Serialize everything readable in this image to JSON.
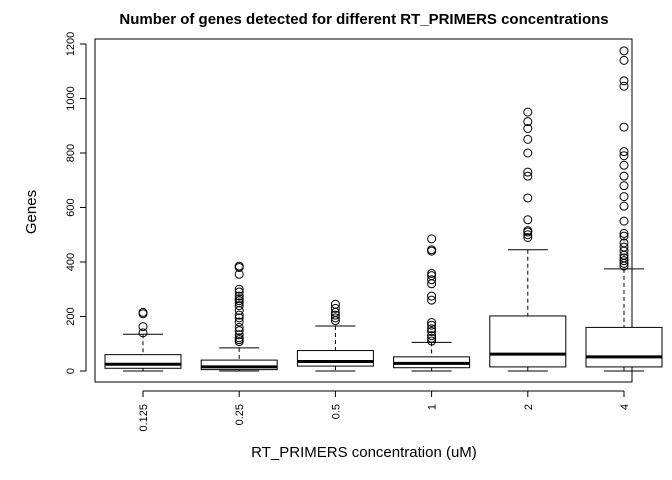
{
  "chart_data": {
    "type": "boxplot",
    "title": "Number of genes detected for different RT_PRIMERS concentrations",
    "xlabel": "RT_PRIMERS concentration (uM)",
    "ylabel": "Genes",
    "ylim": [
      -40,
      1230
    ],
    "y_ticks": [
      0,
      200,
      400,
      600,
      800,
      1000,
      1200
    ],
    "categories": [
      "0.125",
      "0.25",
      "0.5",
      "1",
      "2",
      "4"
    ],
    "boxes": [
      {
        "label": "0.125",
        "whisker_low": 0,
        "q1": 10,
        "median": 25,
        "q3": 60,
        "whisker_high": 135,
        "outliers": [
          140,
          163,
          210,
          215
        ]
      },
      {
        "label": "0.25",
        "whisker_low": 0,
        "q1": 5,
        "median": 15,
        "q3": 40,
        "whisker_high": 85,
        "outliers": [
          108,
          115,
          122,
          133,
          148,
          160,
          180,
          195,
          205,
          222,
          240,
          250,
          258,
          265,
          275,
          290,
          300,
          355,
          380,
          385
        ]
      },
      {
        "label": "0.5",
        "whisker_low": 0,
        "q1": 18,
        "median": 35,
        "q3": 75,
        "whisker_high": 165,
        "outliers": [
          185,
          195,
          205,
          215,
          230,
          245
        ]
      },
      {
        "label": "1",
        "whisker_low": 0,
        "q1": 12,
        "median": 28,
        "q3": 52,
        "whisker_high": 105,
        "outliers": [
          110,
          120,
          130,
          145,
          155,
          168,
          178,
          260,
          275,
          320,
          335,
          350,
          358,
          440,
          445,
          485
        ]
      },
      {
        "label": "2",
        "whisker_low": 0,
        "q1": 15,
        "median": 62,
        "q3": 202,
        "whisker_high": 445,
        "outliers": [
          490,
          500,
          510,
          515,
          555,
          635,
          715,
          730,
          800,
          850,
          890,
          915,
          950
        ]
      },
      {
        "label": "4",
        "whisker_low": 0,
        "q1": 15,
        "median": 52,
        "q3": 160,
        "whisker_high": 375,
        "outliers": [
          385,
          395,
          405,
          415,
          425,
          440,
          455,
          470,
          495,
          505,
          550,
          605,
          640,
          680,
          715,
          755,
          790,
          805,
          895,
          1045,
          1065,
          1140,
          1175
        ]
      }
    ]
  }
}
